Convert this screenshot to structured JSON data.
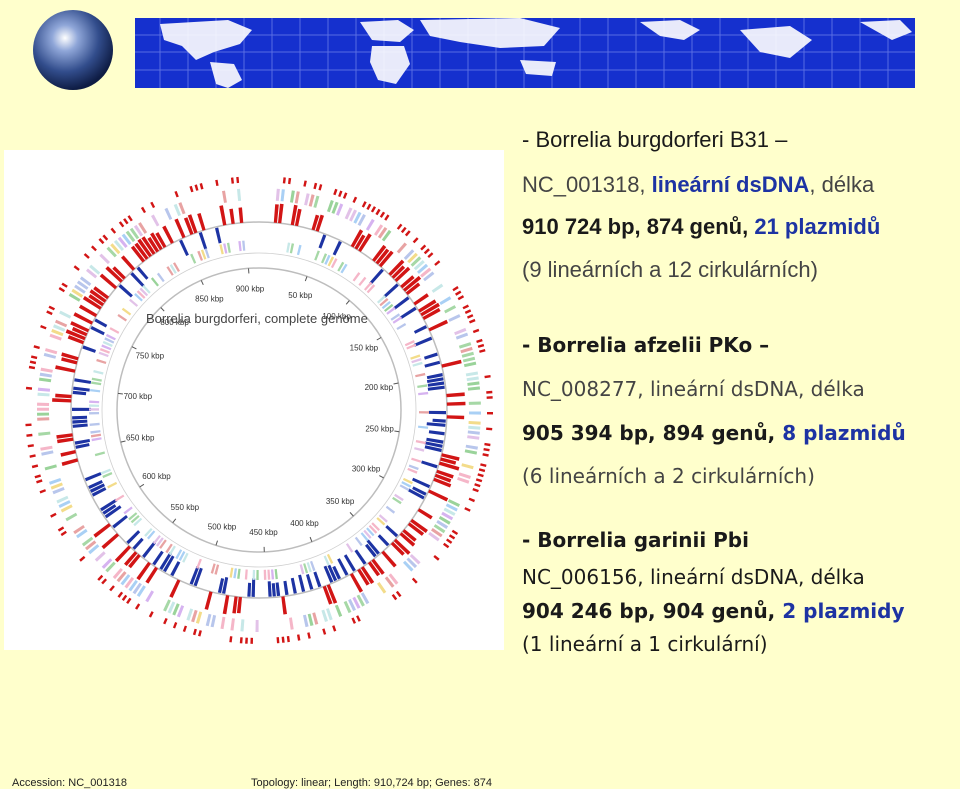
{
  "colors": {
    "background": "#FFFFCC",
    "banner": "#1530CE",
    "text_dark": "#1a1a1a",
    "text_gray": "#444444",
    "accent_blue": "#1d33a3",
    "strand_red": "#d21515"
  },
  "figure": {
    "title": "Borrelia burgdorferi, complete genome",
    "accession": "Accession: NC_001318",
    "topology": "Topology: linear; Length: 910,724 bp; Genes: 874",
    "scale_labels": [
      "50 kbp",
      "100 kbp",
      "150 kbp",
      "200 kbp",
      "250 kbp",
      "300 kbp",
      "350 kbp",
      "400 kbp",
      "450 kbp",
      "500 kbp",
      "550 kbp",
      "600 kbp",
      "650 kbp",
      "700 kbp",
      "750 kbp",
      "800 kbp",
      "850 kbp",
      "900 kbp"
    ]
  },
  "s1": {
    "title": "- Borrelia burgdorferi B31 –",
    "l1a": "NC_001318, ",
    "l1b": "lineární dsDNA",
    "l1c": ", délka",
    "l2a": "910 724 bp, 874 genů, ",
    "l2b": "21 plazmidů",
    "l3": "(9 lineárních a 12 cirkulárních)"
  },
  "s2": {
    "title": "- Borrelia afzelii PKo –",
    "l1": "NC_008277, lineární dsDNA, délka",
    "l2a": "905 394 bp, 894 genů, ",
    "l2b": "8 plazmidů",
    "l3": "(6 lineárních a 2 cirkulárních)"
  },
  "s3": {
    "title": "- Borrelia garinii Pbi",
    "l1": "NC_006156, lineární dsDNA, délka",
    "l2a": "904 246 bp, 904 genů, ",
    "l2b": "2 plazmidy",
    "l3": "(1 lineární a 1 cirkulární)"
  }
}
